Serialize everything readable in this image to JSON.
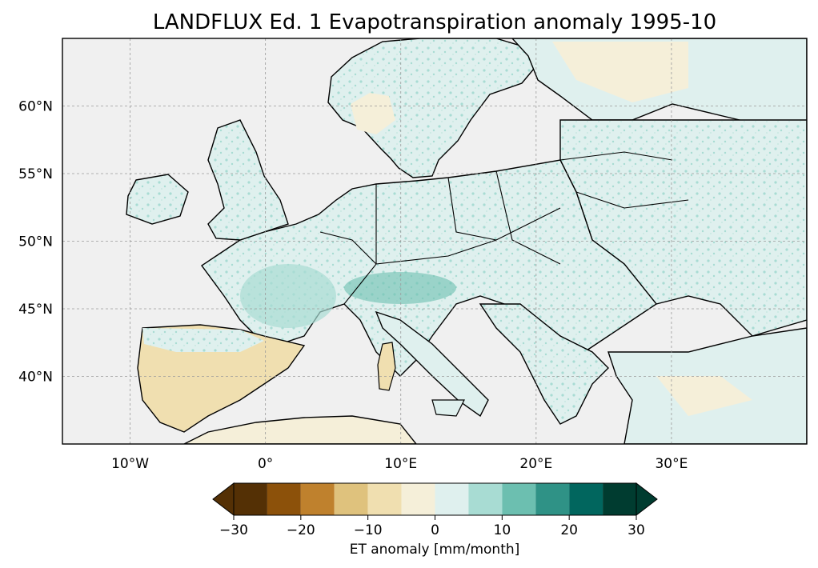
{
  "title": "LANDFLUX Ed. 1 Evapotranspiration anomaly 1995-10",
  "map": {
    "extent_lon": [
      -15,
      40
    ],
    "extent_lat": [
      35,
      65
    ],
    "projection": "PlateCarree",
    "gridlines": "dashed gray",
    "ocean_color": "#f0f0f0",
    "coastline_color": "#000000",
    "x_ticks": [
      {
        "value": -10,
        "label": "10°W"
      },
      {
        "value": 0,
        "label": "0°"
      },
      {
        "value": 10,
        "label": "10°E"
      },
      {
        "value": 20,
        "label": "20°E"
      },
      {
        "value": 30,
        "label": "30°E"
      }
    ],
    "y_ticks": [
      {
        "value": 60,
        "label": "60°N"
      },
      {
        "value": 55,
        "label": "55°N"
      },
      {
        "value": 50,
        "label": "50°N"
      },
      {
        "value": 45,
        "label": "45°N"
      },
      {
        "value": 40,
        "label": "40°N"
      }
    ]
  },
  "colorbar": {
    "label": "ET anomaly [mm/month]",
    "extend": "both",
    "colormap": "BrBG",
    "boundaries": [
      -30,
      -25,
      -20,
      -15,
      -10,
      -5,
      0,
      5,
      10,
      15,
      20,
      25,
      30
    ],
    "colors": [
      "#543005",
      "#8c510a",
      "#bf812d",
      "#dfc27d",
      "#f0dfb0",
      "#f5efd9",
      "#dff0ee",
      "#a8dcd3",
      "#6cbfb0",
      "#2f9286",
      "#01665e",
      "#003c30"
    ],
    "under_color": "#543005",
    "over_color": "#003c30",
    "tick_labels": [
      {
        "value": -30,
        "label": "−30"
      },
      {
        "value": -20,
        "label": "−20"
      },
      {
        "value": -10,
        "label": "−10"
      },
      {
        "value": 0,
        "label": "0"
      },
      {
        "value": 10,
        "label": "10"
      },
      {
        "value": 20,
        "label": "20"
      },
      {
        "value": 30,
        "label": "30"
      }
    ]
  }
}
